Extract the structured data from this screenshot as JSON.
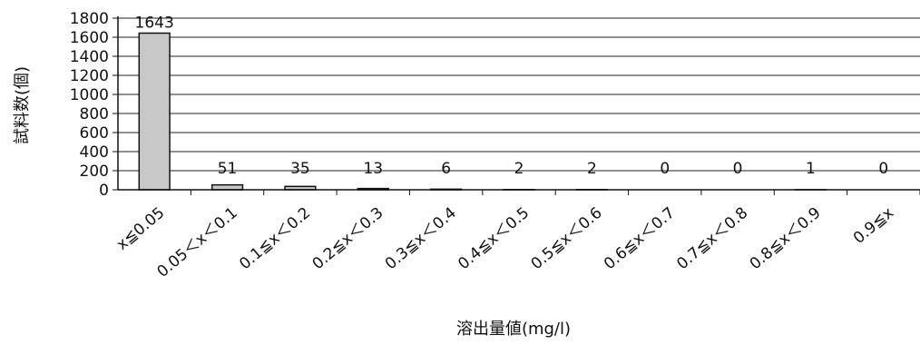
{
  "chart_data": {
    "type": "bar",
    "title": "",
    "xlabel": "溶出量値(mg/l)",
    "ylabel": "試料数(個)",
    "categories": [
      "x≦0.05",
      "0.05＜x＜0.1",
      "0.1≦x＜0.2",
      "0.2≦x＜0.3",
      "0.3≦x＜0.4",
      "0.4≦x＜0.5",
      "0.5≦x＜0.6",
      "0.6≦x＜0.7",
      "0.7≦x＜0.8",
      "0.8≦x＜0.9",
      "0.9≦x"
    ],
    "values": [
      1643,
      51,
      35,
      13,
      6,
      2,
      2,
      0,
      0,
      1,
      0
    ],
    "data_labels": [
      "1643",
      "51",
      "35",
      "13",
      "6",
      "2",
      "2",
      "0",
      "0",
      "1",
      "0"
    ],
    "ylim": [
      0,
      1800
    ],
    "yticks": [
      0,
      200,
      400,
      600,
      800,
      1000,
      1200,
      1400,
      1600,
      1800
    ],
    "grid": true,
    "legend": "none",
    "colors": {
      "bar_fill": "#c8c8c8",
      "bar_stroke": "#111111",
      "grid": "#222222"
    }
  }
}
